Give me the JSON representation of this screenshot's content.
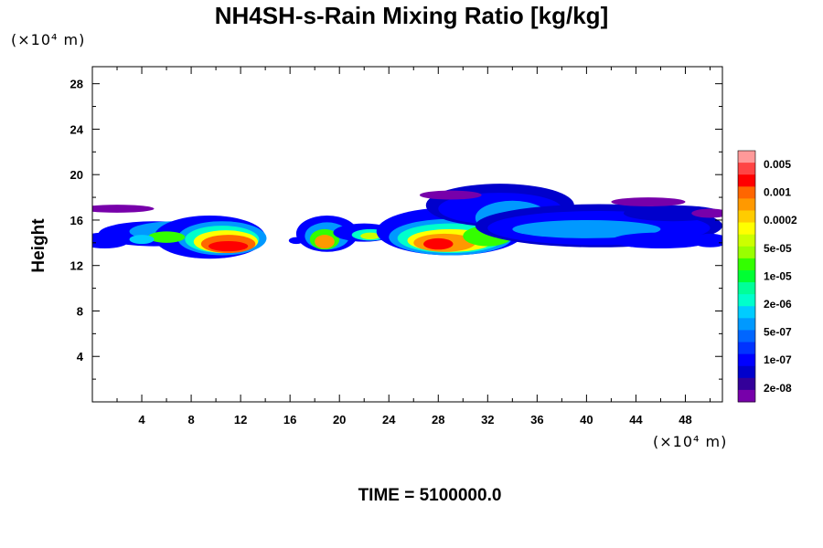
{
  "chart_data": {
    "type": "heatmap",
    "title": "NH4SH-s-Rain Mixing Ratio [kg/kg]",
    "ylabel": "Height",
    "x_unit": "(×10⁴ m)",
    "y_unit": "(×10⁴ m)",
    "xlim": [
      0,
      51
    ],
    "ylim": [
      0,
      29.5
    ],
    "x_ticks": [
      "4",
      "8",
      "12",
      "16",
      "20",
      "24",
      "28",
      "32",
      "36",
      "40",
      "44",
      "48"
    ],
    "x_tick_values": [
      4,
      8,
      12,
      16,
      20,
      24,
      28,
      32,
      36,
      40,
      44,
      48
    ],
    "y_ticks": [
      "4",
      "8",
      "12",
      "16",
      "20",
      "24",
      "28"
    ],
    "y_tick_values": [
      4,
      8,
      12,
      16,
      20,
      24,
      28
    ],
    "colorbar": {
      "labels": [
        "0.005",
        "0.001",
        "0.0002",
        "5e-05",
        "1e-05",
        "2e-06",
        "5e-07",
        "1e-07",
        "2e-08"
      ],
      "colors": [
        "#ff9999",
        "#ff4444",
        "#ff0000",
        "#ff6600",
        "#ff9900",
        "#ffcc00",
        "#ffff00",
        "#ccff00",
        "#99ff00",
        "#33ff00",
        "#00ff33",
        "#00ff99",
        "#00ffcc",
        "#00ccff",
        "#0099ff",
        "#0066ff",
        "#0033ff",
        "#0000ff",
        "#0000cc",
        "#330099",
        "#7700aa"
      ]
    },
    "regions": [
      {
        "x_range": [
          0,
          14
        ],
        "y_range": [
          12.5,
          16.5
        ],
        "peak": "0.001"
      },
      {
        "x_range": [
          15.5,
          24.5
        ],
        "y_range": [
          13,
          16.3
        ],
        "peak": "0.0002"
      },
      {
        "x_range": [
          24.5,
          34
        ],
        "y_range": [
          12.5,
          17
        ],
        "peak": "0.001"
      },
      {
        "x_range": [
          34,
          51
        ],
        "y_range": [
          13,
          19.5
        ],
        "peak": "1e-05"
      }
    ]
  },
  "footer": {
    "time": "TIME = 5100000.0"
  }
}
